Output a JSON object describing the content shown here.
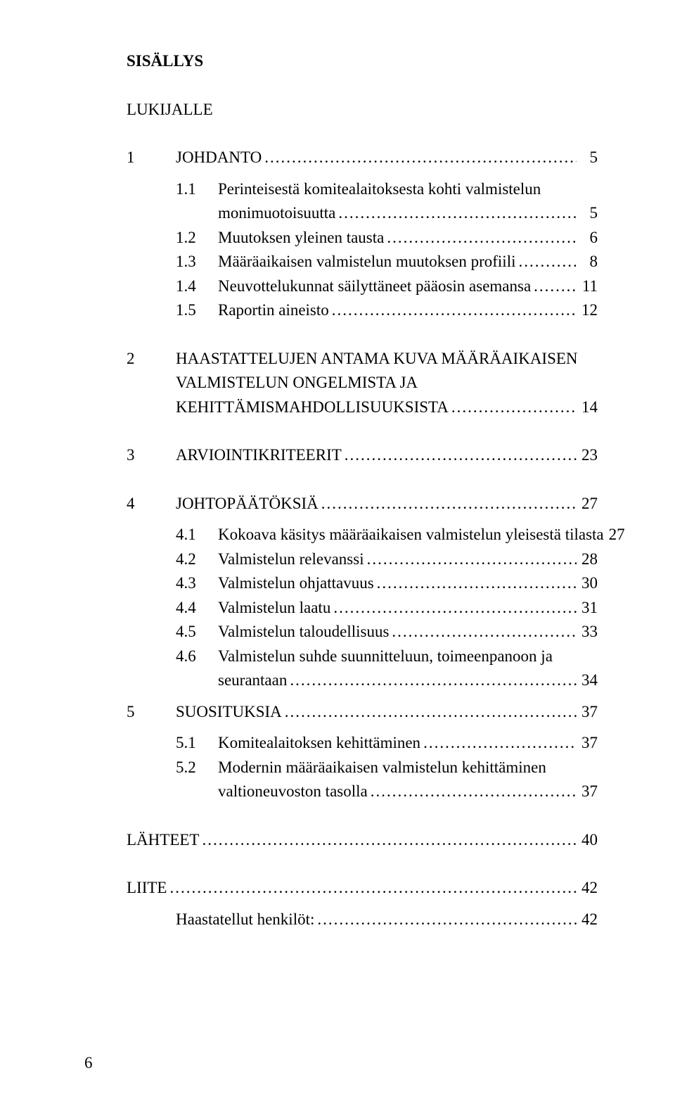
{
  "title": "SISÄLLYS",
  "lukijalle": "LUKIJALLE",
  "toc": {
    "s1": {
      "num": "1",
      "label": "JOHDANTO",
      "page": "5"
    },
    "s1_1": {
      "num": "1.1",
      "line1": "Perinteisestä komitealaitoksesta kohti valmistelun",
      "line2": "monimuotoisuutta",
      "page": "5"
    },
    "s1_2": {
      "num": "1.2",
      "label": "Muutoksen yleinen tausta",
      "page": "6"
    },
    "s1_3": {
      "num": "1.3",
      "label": "Määräaikaisen valmistelun muutoksen profiili",
      "page": "8"
    },
    "s1_4": {
      "num": "1.4",
      "label": "Neuvottelukunnat säilyttäneet pääosin asemansa",
      "page": "11"
    },
    "s1_5": {
      "num": "1.5",
      "label": "Raportin aineisto",
      "page": "12"
    },
    "s2": {
      "num": "2",
      "line1": "HAASTATTELUJEN ANTAMA KUVA MÄÄRÄAIKAISEN",
      "line2": "VALMISTELUN ONGELMISTA JA",
      "line3": "KEHITTÄMISMAHDOLLISUUKSISTA",
      "page": "14"
    },
    "s3": {
      "num": "3",
      "label": "ARVIOINTIKRITEERIT",
      "page": "23"
    },
    "s4": {
      "num": "4",
      "label": "JOHTOPÄÄTÖKSIÄ",
      "page": "27"
    },
    "s4_1": {
      "num": "4.1",
      "label": "Kokoava käsitys määräaikaisen valmistelun yleisestä tilasta",
      "page": "27"
    },
    "s4_2": {
      "num": "4.2",
      "label": "Valmistelun relevanssi",
      "page": "28"
    },
    "s4_3": {
      "num": "4.3",
      "label": "Valmistelun ohjattavuus",
      "page": "30"
    },
    "s4_4": {
      "num": "4.4",
      "label": "Valmistelun laatu",
      "page": "31"
    },
    "s4_5": {
      "num": "4.5",
      "label": "Valmistelun taloudellisuus",
      "page": "33"
    },
    "s4_6": {
      "num": "4.6",
      "line1": "Valmistelun suhde suunnitteluun, toimeenpanoon ja",
      "line2": "seurantaan",
      "page": "34"
    },
    "s5": {
      "num": "5",
      "label": "SUOSITUKSIA",
      "page": "37"
    },
    "s5_1": {
      "num": "5.1",
      "label": "Komitealaitoksen kehittäminen",
      "page": "37"
    },
    "s5_2": {
      "num": "5.2",
      "line1": "Modernin määräaikaisen valmistelun kehittäminen",
      "line2": "valtioneuvoston tasolla",
      "page": "37"
    },
    "lahteet": {
      "label": "LÄHTEET",
      "page": "40"
    },
    "liite": {
      "label": "LIITE",
      "page": "42"
    },
    "haast": {
      "label": "Haastatellut henkilöt:",
      "page": "42"
    }
  },
  "footer_page": "6"
}
